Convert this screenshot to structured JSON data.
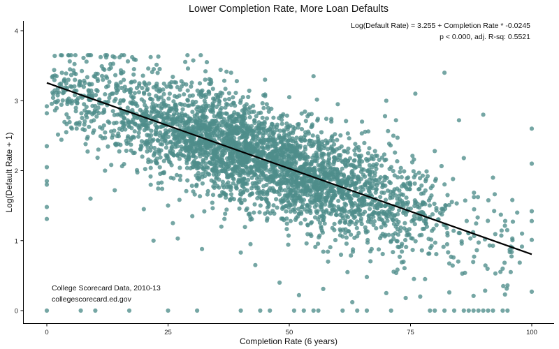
{
  "chart_data": {
    "type": "scatter",
    "title": "Lower Completion Rate, More Loan Defaults",
    "xlabel": "Completion Rate (6 years)",
    "ylabel": "Log(Default Rate + 1)",
    "xlim": [
      -5,
      105
    ],
    "ylim": [
      -0.2,
      4.25
    ],
    "xticks": [
      0,
      25,
      50,
      75,
      100
    ],
    "yticks": [
      0,
      1,
      2,
      3,
      4
    ],
    "x_tick_labels": [
      "0",
      "25",
      "50",
      "75",
      "100"
    ],
    "y_tick_labels": [
      "0",
      "1",
      "2",
      "3",
      "4"
    ],
    "grid": false,
    "legend": "none",
    "point_color": "#4e8d8a",
    "line_color": "#000000",
    "regression": {
      "intercept": 3.255,
      "slope": -0.0245,
      "x_range": [
        0,
        100
      ],
      "equation_label": "Log(Default Rate) = 3.255 + Completion Rate * -0.0245",
      "stats_label": "p < 0.000, adj. R-sq: 0.5521"
    },
    "annotations": [
      "College Scorecard Data, 2010-13",
      "collegescorecard.ed.gov"
    ],
    "points": [
      [
        0,
        2.92
      ],
      [
        0,
        2.82
      ],
      [
        0,
        2.35
      ],
      [
        0,
        2.05
      ],
      [
        0,
        1.85
      ],
      [
        0,
        1.8
      ],
      [
        0,
        1.48
      ],
      [
        0,
        1.31
      ],
      [
        0,
        0.0
      ],
      [
        7,
        0.0
      ],
      [
        10,
        0.0
      ],
      [
        17,
        0.0
      ],
      [
        25,
        0.0
      ],
      [
        31,
        0.0
      ],
      [
        40,
        0.0
      ],
      [
        44,
        0.0
      ],
      [
        46,
        0.0
      ],
      [
        51,
        0.0
      ],
      [
        53,
        0.0
      ],
      [
        55,
        0.0
      ],
      [
        56,
        0.0
      ],
      [
        61,
        0.0
      ],
      [
        64,
        0.0
      ],
      [
        66,
        0.0
      ],
      [
        71,
        0.0
      ],
      [
        79,
        0.0
      ],
      [
        80,
        0.0
      ],
      [
        82,
        0.0
      ],
      [
        84,
        0.0
      ],
      [
        86,
        0.0
      ],
      [
        87,
        0.0
      ],
      [
        88,
        0.0
      ],
      [
        89,
        0.0
      ],
      [
        90,
        0.0
      ],
      [
        91,
        0.0
      ],
      [
        92,
        0.0
      ],
      [
        94,
        0.0
      ],
      [
        95,
        0.0
      ],
      [
        5,
        3.65
      ],
      [
        15,
        3.62
      ],
      [
        18,
        3.59
      ],
      [
        23,
        3.63
      ],
      [
        29,
        3.65
      ],
      [
        33,
        3.55
      ],
      [
        2,
        3.35
      ],
      [
        3,
        3.2
      ],
      [
        4,
        2.55
      ],
      [
        6,
        2.85
      ],
      [
        8,
        2.38
      ],
      [
        12,
        2.0
      ],
      [
        14,
        1.72
      ],
      [
        9,
        1.6
      ],
      [
        22,
        1.0
      ],
      [
        27,
        1.03
      ],
      [
        32,
        0.88
      ],
      [
        40,
        0.83
      ],
      [
        43,
        0.65
      ],
      [
        48,
        0.4
      ],
      [
        52,
        0.22
      ],
      [
        57,
        0.31
      ],
      [
        63,
        0.12
      ],
      [
        70,
        0.25
      ],
      [
        74,
        0.18
      ],
      [
        77,
        0.2
      ],
      [
        83,
        0.26
      ],
      [
        88,
        0.21
      ],
      [
        95,
        0.36
      ],
      [
        100,
        0.27
      ],
      [
        100,
        1.01
      ],
      [
        100,
        1.28
      ],
      [
        100,
        1.42
      ],
      [
        100,
        2.1
      ],
      [
        100,
        2.6
      ],
      [
        82,
        3.4
      ],
      [
        90,
        2.8
      ],
      [
        85,
        2.72
      ],
      [
        76,
        3.1
      ],
      [
        70,
        3.0
      ],
      [
        55,
        3.35
      ],
      [
        45,
        3.3
      ],
      [
        38,
        3.4
      ],
      [
        96,
        1.58
      ],
      [
        97,
        1.4
      ],
      [
        98,
        1.1
      ],
      [
        96,
        0.9
      ],
      [
        94,
        0.6
      ],
      [
        80,
        2.28
      ],
      [
        86,
        2.18
      ],
      [
        92,
        1.9
      ],
      [
        60,
        2.95
      ],
      [
        65,
        2.7
      ],
      [
        72,
        2.72
      ],
      [
        50,
        3.05
      ],
      [
        62,
        0.55
      ],
      [
        30,
        1.35
      ],
      [
        26,
        1.25
      ],
      [
        20,
        1.45
      ],
      [
        36,
        1.2
      ],
      [
        42,
        0.95
      ],
      [
        58,
        0.7
      ],
      [
        66,
        0.48
      ],
      [
        78,
        0.45
      ]
    ]
  }
}
